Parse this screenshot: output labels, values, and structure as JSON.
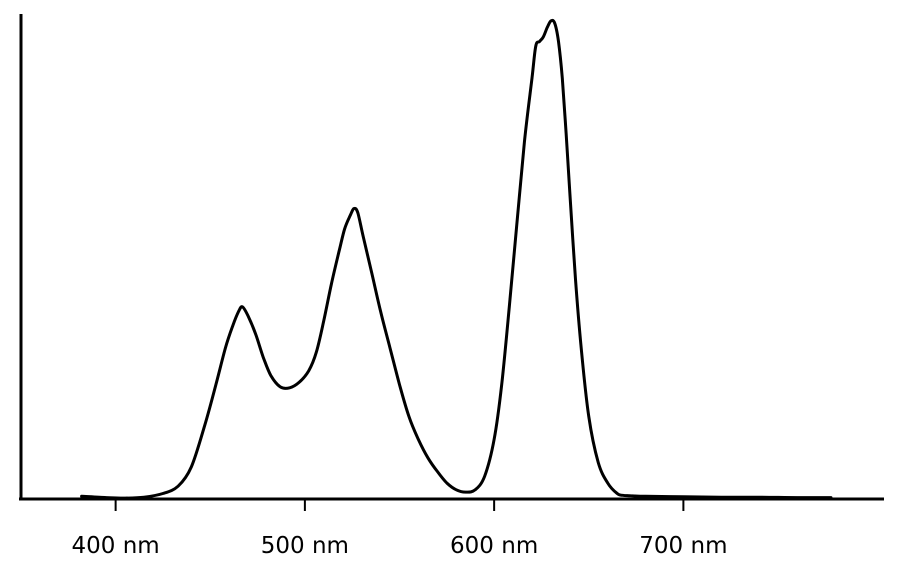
{
  "chart_data": {
    "type": "line",
    "title": "",
    "xlabel": "",
    "ylabel": "",
    "xlim": [
      350,
      806
    ],
    "ylim": [
      0,
      1.06
    ],
    "x_ticks": [
      400,
      500,
      600,
      700
    ],
    "x_tick_labels": [
      "400 nm",
      "500 nm",
      "600 nm",
      "700 nm"
    ],
    "y_ticks": [],
    "grid": false,
    "legend": "none",
    "series": [
      {
        "color": "#000000",
        "x": [
          382,
          395,
          405,
          415,
          425,
          433,
          440,
          447,
          453,
          458,
          462,
          465,
          467,
          470,
          474,
          478,
          482,
          487,
          492,
          497,
          502,
          506,
          510,
          514,
          518,
          521,
          524,
          526,
          528,
          531,
          535,
          540,
          545,
          550,
          555,
          560,
          565,
          570,
          575,
          580,
          585,
          590,
          595,
          600,
          604,
          608,
          612,
          616,
          620,
          622,
          624,
          626,
          628,
          630,
          632,
          634,
          636,
          638,
          640,
          643,
          646,
          650,
          655,
          660,
          665,
          668,
          672,
          680,
          700,
          720,
          740,
          760,
          778
        ],
        "values": [
          0.006,
          0.003,
          0.002,
          0.004,
          0.012,
          0.028,
          0.07,
          0.16,
          0.25,
          0.33,
          0.38,
          0.41,
          0.42,
          0.4,
          0.36,
          0.31,
          0.27,
          0.245,
          0.243,
          0.255,
          0.28,
          0.32,
          0.39,
          0.47,
          0.54,
          0.59,
          0.62,
          0.635,
          0.625,
          0.57,
          0.5,
          0.41,
          0.33,
          0.25,
          0.18,
          0.13,
          0.09,
          0.06,
          0.035,
          0.02,
          0.015,
          0.02,
          0.05,
          0.13,
          0.25,
          0.42,
          0.6,
          0.78,
          0.92,
          0.99,
          1.0,
          1.01,
          1.03,
          1.045,
          1.04,
          1.0,
          0.92,
          0.8,
          0.67,
          0.48,
          0.33,
          0.18,
          0.08,
          0.035,
          0.012,
          0.008,
          0.007,
          0.006,
          0.005,
          0.004,
          0.004,
          0.003,
          0.003
        ]
      }
    ]
  }
}
